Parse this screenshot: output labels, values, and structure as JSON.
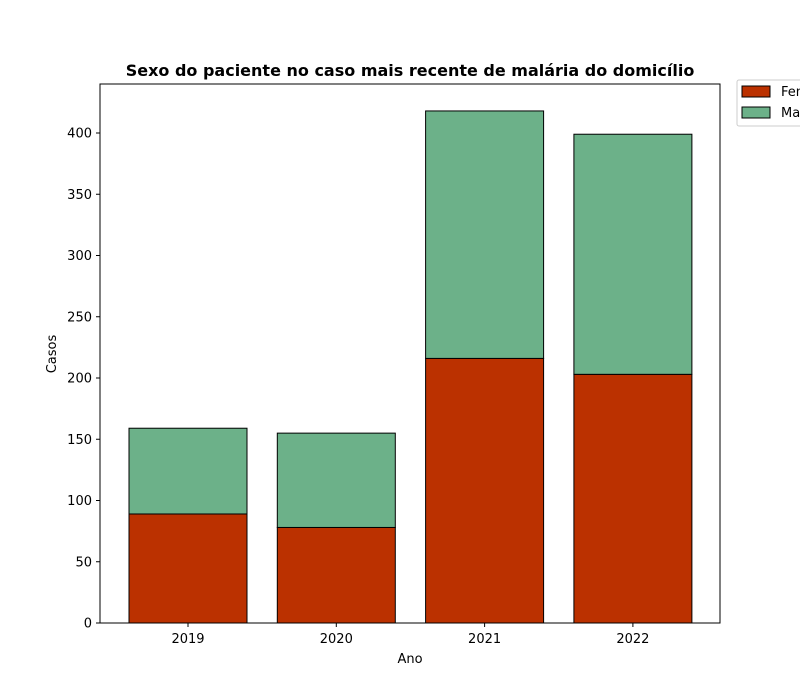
{
  "chart_data": {
    "type": "bar",
    "stacked": true,
    "title": "Sexo do paciente no caso mais recente de malária do domicílio",
    "xlabel": "Ano",
    "ylabel": "Casos",
    "categories": [
      "2019",
      "2020",
      "2021",
      "2022"
    ],
    "series": [
      {
        "name": "Feminino",
        "values": [
          89,
          78,
          216,
          203
        ],
        "color": "#bb3100"
      },
      {
        "name": "Masculino",
        "values": [
          70,
          77,
          202,
          196
        ],
        "color": "#6cb189"
      }
    ],
    "ylim": [
      0,
      440
    ],
    "yticks": [
      0,
      50,
      100,
      150,
      200,
      250,
      300,
      350,
      400
    ],
    "legend_position": "outside-top-right",
    "legend_labels_visible": [
      "Fem",
      "Ma"
    ],
    "grid": false
  }
}
